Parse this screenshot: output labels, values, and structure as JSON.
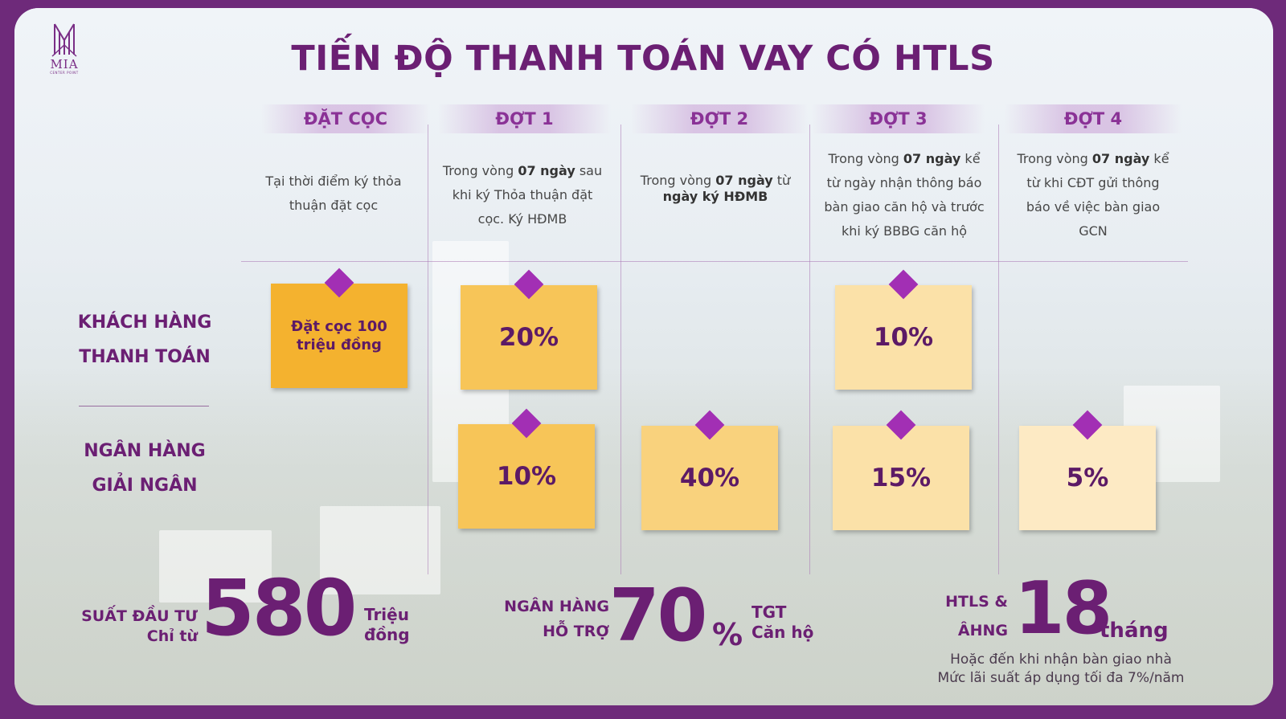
{
  "brand": {
    "logo_text": "MIA",
    "logo_sub": "CENTER POINT"
  },
  "title": "TIẾN ĐỘ THANH TOÁN VAY CÓ HTLS",
  "phases": [
    {
      "label": "ĐẶT CỌC",
      "desc_line1": "Tại thời điểm ký thỏa",
      "desc_line2": "thuận đặt cọc"
    },
    {
      "label": "ĐỢT 1",
      "desc_pre": "Trong vòng ",
      "desc_bold": "07 ngày",
      "desc_post": " sau",
      "desc_line2": "khi ký Thỏa thuận đặt",
      "desc_line3": "cọc. Ký HĐMB"
    },
    {
      "label": "ĐỢT 2",
      "desc_pre": "Trong vòng ",
      "desc_bold": "07 ngày",
      "desc_post": " từ",
      "desc_line2": "ngày ký HĐMB"
    },
    {
      "label": "ĐỢT 3",
      "desc_pre": "Trong vòng ",
      "desc_bold": "07 ngày",
      "desc_post": " kể",
      "desc_line2": "từ ngày nhận thông báo",
      "desc_line3": "bàn giao căn hộ và trước",
      "desc_line4": "khi ký BBBG căn hộ"
    },
    {
      "label": "ĐỢT 4",
      "desc_pre": "Trong vòng ",
      "desc_bold": "07 ngày",
      "desc_post": " kể",
      "desc_line2": "từ khi CĐT gửi thông",
      "desc_line3": "báo về việc bàn giao",
      "desc_line4": "GCN"
    }
  ],
  "rows": {
    "customer": {
      "line1": "KHÁCH HÀNG",
      "line2": "THANH TOÁN"
    },
    "bank": {
      "line1": "NGÂN HÀNG",
      "line2": "GIẢI NGÂN"
    }
  },
  "customer_payments": {
    "deposit": "Đặt cọc 100 triệu đồng",
    "dot1": "20%",
    "dot3": "10%"
  },
  "bank_disbursements": {
    "dot1": "10%",
    "dot2": "40%",
    "dot3": "15%",
    "dot4": "5%"
  },
  "stats": {
    "investment": {
      "label_line1": "SUẤT ĐẦU TƯ",
      "label_line2": "Chỉ từ",
      "value": "580",
      "unit_line1": "Triệu",
      "unit_line2": "đồng"
    },
    "bank_support": {
      "label_line1": "NGÂN HÀNG",
      "label_line2": "HỖ TRỢ",
      "value": "70",
      "percent": "%",
      "unit_line1": "TGT",
      "unit_line2": "Căn hộ"
    },
    "interest": {
      "label_line1": "HTLS &",
      "label_line2": "ÂHNG",
      "value": "18",
      "unit": "tháng",
      "note_line1": "Hoặc đến khi nhận bàn giao nhà",
      "note_line2": "Mức lãi suất áp dụng tối đa 7%/năm"
    }
  },
  "colors": {
    "brand_purple": "#6b1f73",
    "pin": "#a22fb4",
    "note_dark": "#f4b22f",
    "note_light": "#fdeac4"
  }
}
